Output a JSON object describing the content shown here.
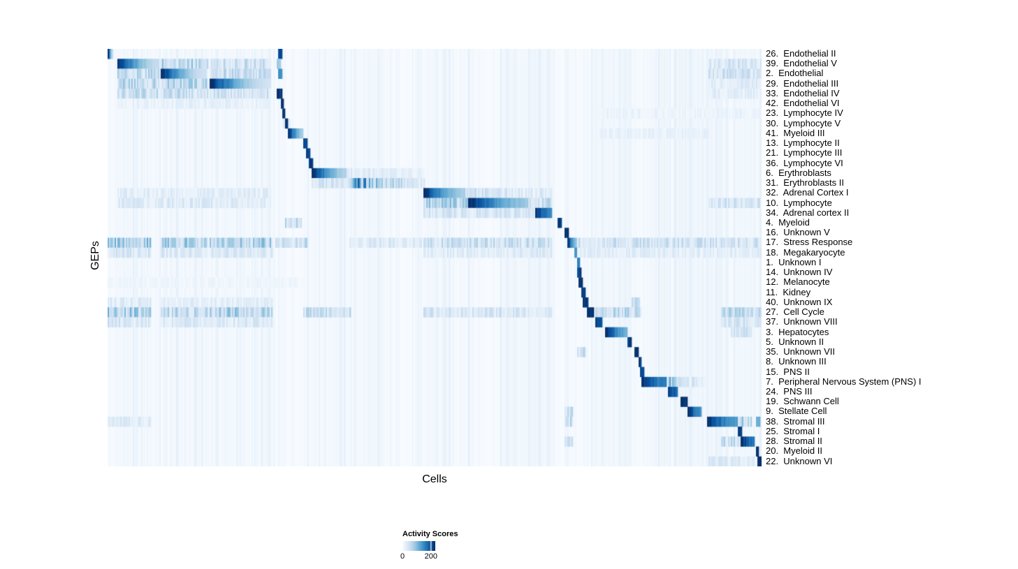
{
  "figure": {
    "background": "#ffffff"
  },
  "chart_data": {
    "type": "heatmap",
    "title": "",
    "xlabel": "Cells",
    "ylabel": "GEPs",
    "grid": false,
    "axis_tick_labels_shown": false,
    "legend": {
      "title": "Activity Scores",
      "position": "bottom-left",
      "vmin": 0,
      "vmax": 230,
      "ticks": [
        {
          "label": "0",
          "value": 0
        },
        {
          "label": "200",
          "value": 200
        }
      ]
    },
    "colormap": {
      "name": "Blues",
      "stops": [
        [
          0,
          "#f7fbff"
        ],
        [
          0.125,
          "#deebf7"
        ],
        [
          0.25,
          "#c6dbef"
        ],
        [
          0.375,
          "#9ecae1"
        ],
        [
          0.5,
          "#6baed6"
        ],
        [
          0.625,
          "#4292c6"
        ],
        [
          0.75,
          "#2171b5"
        ],
        [
          0.875,
          "#08519c"
        ],
        [
          1,
          "#08306b"
        ]
      ]
    },
    "segment_format": "[x_start_fraction, x_end_fraction, value_at_start, value_at_end, striped_texture]",
    "texture_columns": [
      [
        0.015,
        0.25,
        6
      ],
      [
        0.3,
        0.42,
        7
      ],
      [
        0.485,
        0.56,
        7
      ],
      [
        0.6,
        0.679,
        9
      ],
      [
        0.74,
        0.8,
        8
      ],
      [
        0.83,
        0.95,
        9
      ],
      [
        0.955,
        1,
        10
      ]
    ],
    "rows": [
      {
        "label": "26.  Endothelial II",
        "segments": [
          [
            0,
            0.007,
            235,
            60,
            0
          ],
          [
            0.262,
            0.266,
            205,
            205,
            0
          ]
        ]
      },
      {
        "label": "39.  Endothelial V",
        "segments": [
          [
            0.015,
            0.079,
            235,
            55,
            0
          ],
          [
            0.083,
            0.152,
            65,
            65,
            1
          ],
          [
            0.157,
            0.248,
            48,
            48,
            1
          ],
          [
            0.259,
            0.263,
            85,
            85,
            0
          ],
          [
            0.92,
            1,
            38,
            38,
            1
          ]
        ]
      },
      {
        "label": "2.  Endothelial",
        "segments": [
          [
            0.015,
            0.079,
            55,
            55,
            1
          ],
          [
            0.083,
            0.151,
            235,
            45,
            0
          ],
          [
            0.157,
            0.248,
            50,
            50,
            1
          ],
          [
            0.261,
            0.265,
            150,
            150,
            0
          ],
          [
            0.92,
            1,
            42,
            42,
            1
          ]
        ]
      },
      {
        "label": "29.  Endothelial III",
        "segments": [
          [
            0.015,
            0.079,
            60,
            60,
            1
          ],
          [
            0.083,
            0.152,
            62,
            62,
            1
          ],
          [
            0.157,
            0.248,
            235,
            42,
            0
          ],
          [
            0.92,
            1,
            26,
            26,
            1
          ]
        ]
      },
      {
        "label": "33.  Endothelial IV",
        "segments": [
          [
            0.015,
            0.079,
            52,
            52,
            1
          ],
          [
            0.083,
            0.152,
            48,
            48,
            1
          ],
          [
            0.157,
            0.248,
            44,
            44,
            1
          ],
          [
            0.259,
            0.266,
            230,
            225,
            0
          ],
          [
            0.92,
            1,
            26,
            26,
            1
          ]
        ]
      },
      {
        "label": "42.  Endothelial VI",
        "segments": [
          [
            0.015,
            0.248,
            18,
            18,
            1
          ],
          [
            0.265,
            0.268,
            222,
            222,
            0
          ]
        ]
      },
      {
        "label": "23.  Lymphocyte IV",
        "segments": [
          [
            0.268,
            0.271,
            218,
            218,
            0
          ],
          [
            0.75,
            1,
            14,
            14,
            1
          ]
        ]
      },
      {
        "label": "30.  Lymphocyte V",
        "segments": [
          [
            0.268,
            0.279,
            42,
            42,
            1
          ],
          [
            0.272,
            0.275,
            215,
            215,
            0
          ]
        ]
      },
      {
        "label": "41.  Myeloid III",
        "segments": [
          [
            0.276,
            0.298,
            235,
            85,
            0
          ],
          [
            0.75,
            0.92,
            18,
            18,
            1
          ]
        ]
      },
      {
        "label": "13.  Lymphocyte II",
        "segments": [
          [
            0.3,
            0.304,
            218,
            218,
            0
          ]
        ]
      },
      {
        "label": "21.  Lymphocyte III",
        "segments": [
          [
            0.305,
            0.308,
            212,
            212,
            0
          ]
        ]
      },
      {
        "label": "36.  Lymphocyte VI",
        "segments": [
          [
            0.308,
            0.312,
            225,
            225,
            0
          ]
        ]
      },
      {
        "label": "6.  Erythroblasts",
        "segments": [
          [
            0.313,
            0.366,
            235,
            70,
            0
          ],
          [
            0.366,
            0.484,
            32,
            20,
            1
          ]
        ]
      },
      {
        "label": "31.  Erythroblasts II",
        "segments": [
          [
            0.313,
            0.37,
            38,
            38,
            1
          ],
          [
            0.372,
            0.484,
            150,
            32,
            1
          ]
        ]
      },
      {
        "label": "32.  Adrenal Cortex I",
        "segments": [
          [
            0.015,
            0.248,
            24,
            24,
            1
          ],
          [
            0.485,
            0.549,
            235,
            75,
            0
          ],
          [
            0.549,
            0.679,
            42,
            28,
            1
          ]
        ]
      },
      {
        "label": "10.  Lymphocyte",
        "segments": [
          [
            0.015,
            0.248,
            30,
            30,
            1
          ],
          [
            0.485,
            0.553,
            68,
            68,
            1
          ],
          [
            0.553,
            0.644,
            235,
            85,
            0
          ],
          [
            0.645,
            0.679,
            58,
            58,
            1
          ],
          [
            0.92,
            1,
            42,
            42,
            1
          ]
        ]
      },
      {
        "label": "34.  Adrenal cortex II",
        "segments": [
          [
            0.485,
            0.65,
            38,
            38,
            1
          ],
          [
            0.654,
            0.678,
            230,
            150,
            0
          ]
        ]
      },
      {
        "label": "4.  Myeloid",
        "segments": [
          [
            0.273,
            0.295,
            52,
            52,
            1
          ],
          [
            0.69,
            0.694,
            220,
            220,
            0
          ]
        ]
      },
      {
        "label": "16.  Unknown V",
        "segments": [
          [
            0.7,
            0.703,
            225,
            225,
            0
          ]
        ]
      },
      {
        "label": "17.  Stress Response",
        "segments": [
          [
            0,
            0.065,
            75,
            75,
            1
          ],
          [
            0.083,
            0.152,
            68,
            68,
            1
          ],
          [
            0.157,
            0.252,
            68,
            68,
            1
          ],
          [
            0.258,
            0.306,
            52,
            52,
            1
          ],
          [
            0.37,
            0.48,
            28,
            28,
            1
          ],
          [
            0.485,
            0.679,
            48,
            48,
            1
          ],
          [
            0.704,
            0.716,
            235,
            90,
            0
          ],
          [
            0.72,
            1,
            44,
            44,
            1
          ]
        ]
      },
      {
        "label": "18.  Megakaryocyte",
        "segments": [
          [
            0,
            0.065,
            38,
            38,
            1
          ],
          [
            0.083,
            0.152,
            33,
            33,
            1
          ],
          [
            0.157,
            0.252,
            33,
            33,
            1
          ],
          [
            0.485,
            0.679,
            28,
            28,
            1
          ],
          [
            0.715,
            0.718,
            130,
            130,
            0
          ],
          [
            0.72,
            1,
            24,
            24,
            1
          ]
        ]
      },
      {
        "label": "1.  Unknown I",
        "segments": [
          [
            0.718,
            0.721,
            160,
            160,
            0
          ]
        ]
      },
      {
        "label": "14.  Unknown IV",
        "segments": [
          [
            0.719,
            0.723,
            212,
            212,
            0
          ]
        ]
      },
      {
        "label": "12.  Melanocyte",
        "segments": [
          [
            0,
            0.3,
            10,
            10,
            1
          ],
          [
            0.722,
            0.726,
            218,
            218,
            0
          ]
        ]
      },
      {
        "label": "11.  Kidney",
        "segments": [
          [
            0.725,
            0.729,
            222,
            222,
            0
          ]
        ]
      },
      {
        "label": "40.  Unknown IX",
        "segments": [
          [
            0,
            0.065,
            28,
            28,
            1
          ],
          [
            0.083,
            0.252,
            22,
            22,
            1
          ],
          [
            0.728,
            0.734,
            230,
            225,
            0
          ],
          [
            0.802,
            0.812,
            65,
            65,
            1
          ]
        ]
      },
      {
        "label": "27.  Cell Cycle",
        "segments": [
          [
            0,
            0.065,
            72,
            72,
            1
          ],
          [
            0.083,
            0.152,
            58,
            58,
            1
          ],
          [
            0.157,
            0.252,
            68,
            68,
            1
          ],
          [
            0.3,
            0.37,
            52,
            52,
            1
          ],
          [
            0.485,
            0.679,
            38,
            38,
            1
          ],
          [
            0.735,
            0.742,
            235,
            230,
            0
          ],
          [
            0.746,
            0.815,
            58,
            58,
            1
          ],
          [
            0.94,
            1,
            62,
            62,
            1
          ]
        ]
      },
      {
        "label": "37.  Unknown VIII",
        "segments": [
          [
            0,
            0.065,
            38,
            38,
            1
          ],
          [
            0.083,
            0.252,
            32,
            32,
            1
          ],
          [
            0.746,
            0.756,
            235,
            195,
            0
          ],
          [
            0.94,
            1,
            38,
            38,
            1
          ]
        ]
      },
      {
        "label": "3.  Hepatocytes",
        "segments": [
          [
            0.761,
            0.794,
            235,
            115,
            0
          ],
          [
            0.955,
            0.985,
            42,
            42,
            1
          ]
        ]
      },
      {
        "label": "5.  Unknown II",
        "segments": [
          [
            0.797,
            0.801,
            222,
            222,
            0
          ]
        ]
      },
      {
        "label": "35.  Unknown VII",
        "segments": [
          [
            0.72,
            0.73,
            46,
            46,
            1
          ],
          [
            0.806,
            0.81,
            218,
            218,
            0
          ]
        ]
      },
      {
        "label": "8.  Unknown III",
        "segments": [
          [
            0.812,
            0.816,
            218,
            218,
            0
          ]
        ]
      },
      {
        "label": "15.  PNS II",
        "segments": [
          [
            0.816,
            0.819,
            212,
            212,
            0
          ]
        ]
      },
      {
        "label": "7.  Peripheral Nervous System (PNS) I",
        "segments": [
          [
            0.818,
            0.854,
            235,
            155,
            0
          ],
          [
            0.858,
            0.874,
            105,
            105,
            1
          ],
          [
            0.877,
            0.915,
            32,
            32,
            1
          ]
        ]
      },
      {
        "label": "24.  PNS III",
        "segments": [
          [
            0.858,
            0.87,
            230,
            175,
            0
          ]
        ]
      },
      {
        "label": "19.  Schwann Cell",
        "segments": [
          [
            0.877,
            0.885,
            230,
            225,
            0
          ]
        ]
      },
      {
        "label": "9.  Stellate Cell",
        "segments": [
          [
            0.7,
            0.71,
            46,
            46,
            1
          ],
          [
            0.888,
            0.907,
            235,
            145,
            0
          ]
        ]
      },
      {
        "label": "38.  Stromal III",
        "segments": [
          [
            0,
            0.065,
            28,
            28,
            1
          ],
          [
            0.7,
            0.71,
            56,
            56,
            1
          ],
          [
            0.917,
            0.963,
            235,
            135,
            0
          ],
          [
            0.965,
            0.983,
            80,
            80,
            1
          ],
          [
            0.992,
            0.996,
            115,
            115,
            0
          ]
        ]
      },
      {
        "label": "25.  Stromal I",
        "segments": [
          [
            0.965,
            0.969,
            218,
            218,
            0
          ]
        ]
      },
      {
        "label": "28.  Stromal II",
        "segments": [
          [
            0.7,
            0.71,
            46,
            46,
            1
          ],
          [
            0.94,
            0.967,
            56,
            56,
            1
          ],
          [
            0.968,
            0.989,
            235,
            165,
            0
          ]
        ]
      },
      {
        "label": "20.  Myeloid II",
        "segments": [
          [
            0.992,
            0.995,
            222,
            222,
            0
          ]
        ]
      },
      {
        "label": "22.  Unknown VI",
        "segments": [
          [
            0.92,
            0.99,
            28,
            28,
            1
          ],
          [
            0.995,
            1,
            235,
            235,
            0
          ]
        ]
      }
    ]
  }
}
